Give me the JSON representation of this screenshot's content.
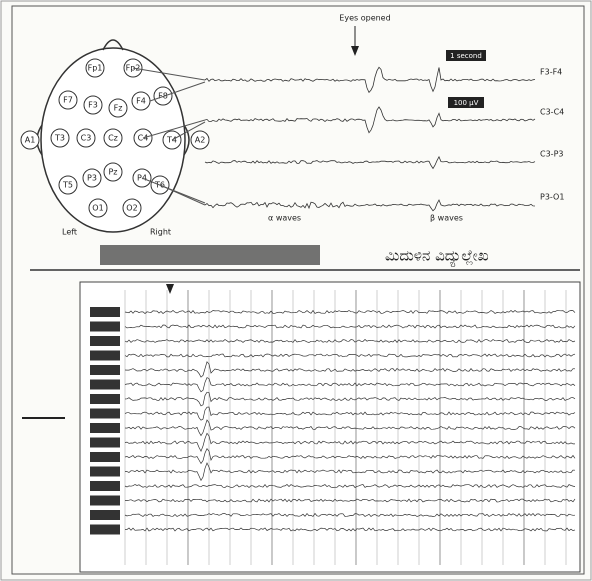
{
  "annotations": {
    "eyes_opened": "Eyes opened",
    "one_second": "1 second",
    "microvolts": "100 µV",
    "left": "Left",
    "right": "Right",
    "alpha_waves": "α waves",
    "beta_waves": "β waves",
    "caption": "ಮಿದುಳಿನ ವಿದ್ಯುಲ್ಲೇಖ"
  },
  "traces": [
    "F3-F4",
    "C3-C4",
    "C3-P3",
    "P3-O1"
  ],
  "electrodes": [
    "Fp1",
    "Fp2",
    "F7",
    "F3",
    "Fz",
    "F4",
    "F8",
    "T3",
    "C3",
    "Cz",
    "C4",
    "T4",
    "T5",
    "P3",
    "Pz",
    "P4",
    "T6",
    "O1",
    "O2",
    "A1",
    "A2"
  ]
}
